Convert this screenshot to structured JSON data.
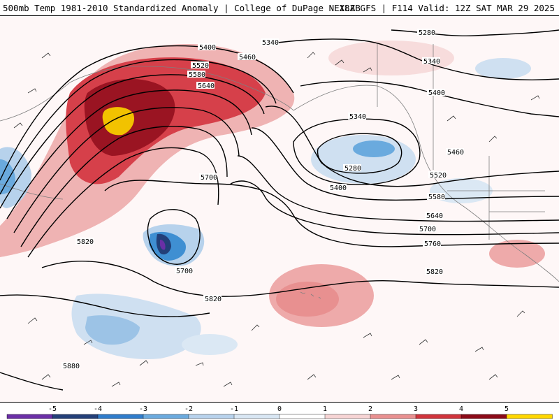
{
  "header": {
    "left_title": "500mb Temp 1981-2010 Standardized Anomaly | College of DuPage NEXLAB",
    "right_title": "18Z GFS | F114 Valid: 12Z SAT MAR 29 2025"
  },
  "colorbar": {
    "ticks": [
      "-5",
      "-4",
      "-3",
      "-2",
      "-1",
      "0",
      "1",
      "2",
      "3",
      "4",
      "5"
    ],
    "colors": [
      "#6a2fa6",
      "#233f78",
      "#2f7ccb",
      "#6aaade",
      "#b7d2ec",
      "#d8e6f3",
      "#ffffff",
      "#f6d4d4",
      "#e89090",
      "#d0343c",
      "#8b0a18",
      "#ffd700"
    ]
  },
  "contours": {
    "labels": [
      "5280",
      "5340",
      "5400",
      "5460",
      "5520",
      "5580",
      "5640",
      "5700",
      "5760",
      "5820",
      "5880"
    ]
  },
  "contour_label_text": {
    "a": "5400",
    "b": "5460",
    "c": "5520",
    "d": "5580",
    "e": "5640",
    "f": "5340",
    "g": "5280",
    "h": "5340",
    "i": "5400",
    "j": "5340",
    "k": "5280",
    "l": "5400",
    "m": "5460",
    "n": "5520",
    "o": "5580",
    "p": "5640",
    "q": "5700",
    "r": "5760",
    "s": "5820",
    "t": "5700",
    "u": "5700",
    "v": "5820",
    "w": "5820",
    "x": "5880"
  }
}
